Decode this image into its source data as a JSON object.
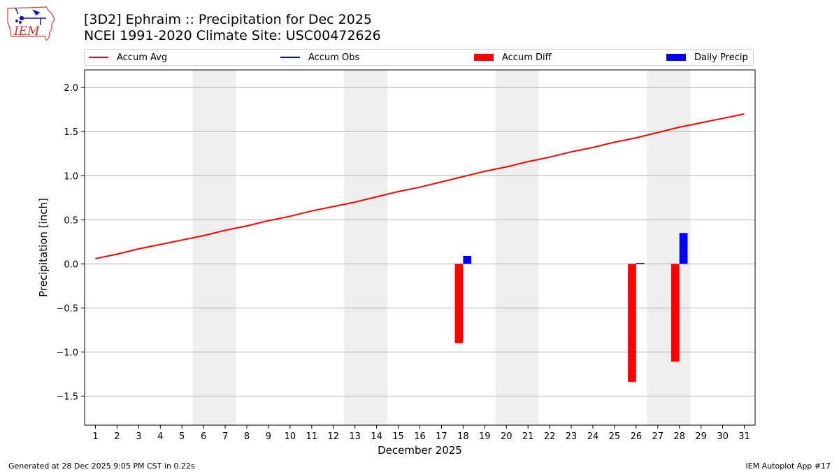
{
  "logo": {
    "text": "IEM"
  },
  "title_line1": "[3D2] Ephraim :: Precipitation for Dec 2025",
  "title_line2": "NCEI 1991-2020 Climate Site: USC00472626",
  "legend": [
    {
      "label": "Accum Avg",
      "kind": "line",
      "color": "#ff0000"
    },
    {
      "label": "Accum Obs",
      "kind": "line",
      "color": "#0000ff"
    },
    {
      "label": "Accum Diff",
      "kind": "patch",
      "color": "#ff0000"
    },
    {
      "label": "Daily Precip",
      "kind": "patch",
      "color": "#0000ff"
    }
  ],
  "footer_left": "Generated at 28 Dec 2025 9:05 PM CST in 0.22s",
  "footer_right": "IEM Autoplot App #17",
  "chart_data": {
    "type": "bar",
    "xlabel": "December 2025",
    "ylabel": "Precipitation [inch]",
    "xlim": [
      0.5,
      31.5
    ],
    "ylim": [
      -1.83,
      2.2
    ],
    "x_ticks": [
      1,
      2,
      3,
      4,
      5,
      6,
      7,
      8,
      9,
      10,
      11,
      12,
      13,
      14,
      15,
      16,
      17,
      18,
      19,
      20,
      21,
      22,
      23,
      24,
      25,
      26,
      27,
      28,
      29,
      30,
      31
    ],
    "y_ticks": [
      2.0,
      1.5,
      1.0,
      0.5,
      0.0,
      -0.5,
      -1.0,
      -1.5
    ],
    "y_tick_labels": [
      "2.0",
      "1.5",
      "1.0",
      "0.5",
      "0.0",
      "−0.5",
      "−1.0",
      "−1.5"
    ],
    "grid": "horizontal",
    "weekend_shading": [
      [
        6,
        7
      ],
      [
        13,
        14
      ],
      [
        20,
        21
      ],
      [
        27,
        28
      ]
    ],
    "accum_avg": {
      "name": "Accum Avg",
      "color": "#ff0000",
      "x": [
        1,
        2,
        3,
        4,
        5,
        6,
        7,
        8,
        9,
        10,
        11,
        12,
        13,
        14,
        15,
        16,
        17,
        18,
        19,
        20,
        21,
        22,
        23,
        24,
        25,
        26,
        27,
        28,
        29,
        30,
        31
      ],
      "values": [
        0.06,
        0.11,
        0.17,
        0.22,
        0.27,
        0.32,
        0.38,
        0.43,
        0.49,
        0.54,
        0.6,
        0.65,
        0.7,
        0.76,
        0.82,
        0.87,
        0.93,
        0.99,
        1.05,
        1.1,
        1.16,
        1.21,
        1.27,
        1.32,
        1.38,
        1.43,
        1.49,
        1.55,
        1.6,
        1.65,
        1.7
      ]
    },
    "accum_obs": {
      "name": "Accum Obs",
      "color": "#0000ff",
      "x": [],
      "values": []
    },
    "accum_diff": {
      "name": "Accum Diff",
      "color": "#ff0000",
      "x": [
        18,
        26,
        28
      ],
      "values": [
        -0.9,
        -1.34,
        -1.11
      ]
    },
    "daily_precip": {
      "name": "Daily Precip",
      "color": "#0000ff",
      "x": [
        18,
        26,
        28
      ],
      "values": [
        0.09,
        0.01,
        0.35
      ]
    }
  }
}
